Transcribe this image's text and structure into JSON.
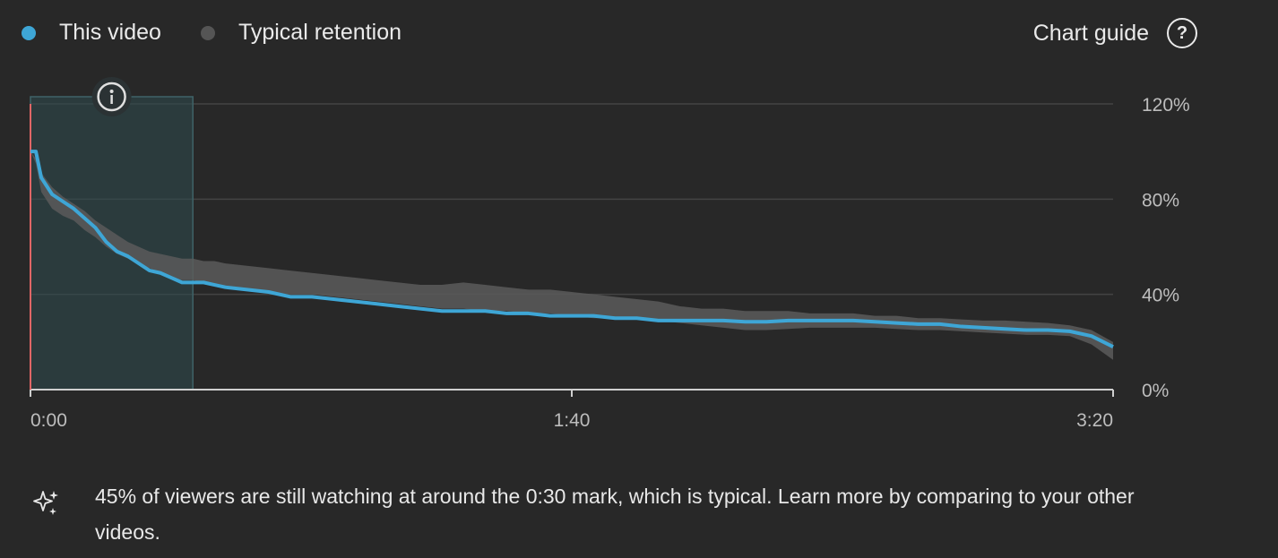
{
  "legend": {
    "items": [
      {
        "label": "This video",
        "color": "#3ea6d6"
      },
      {
        "label": "Typical retention",
        "color": "#555555"
      }
    ]
  },
  "guide": {
    "label": "Chart guide",
    "icon": "help-circle-icon"
  },
  "info_marker": {
    "icon": "info-icon"
  },
  "insight": {
    "icon": "sparkle-icon",
    "text": "45% of viewers are still watching at around the 0:30 mark, which is typical. Learn more by comparing to your other videos."
  },
  "chart_data": {
    "type": "line",
    "xlabel": "",
    "ylabel": "",
    "xlim": [
      0,
      200
    ],
    "ylim": [
      0,
      120
    ],
    "x_ticks": [
      {
        "value": 0,
        "label": "0:00"
      },
      {
        "value": 100,
        "label": "1:40"
      },
      {
        "value": 200,
        "label": "3:20"
      }
    ],
    "y_ticks": [
      {
        "value": 0,
        "label": "0%"
      },
      {
        "value": 40,
        "label": "40%"
      },
      {
        "value": 80,
        "label": "80%"
      },
      {
        "value": 120,
        "label": "120%"
      }
    ],
    "highlight_range": [
      0,
      30
    ],
    "grid": true,
    "legend_position": "top-left",
    "series": [
      {
        "name": "This video",
        "color": "#3ea6d6",
        "x": [
          0,
          1,
          2,
          4,
          6,
          8,
          10,
          12,
          14,
          16,
          18,
          20,
          22,
          24,
          26,
          28,
          30,
          32,
          34,
          36,
          40,
          44,
          48,
          52,
          56,
          60,
          64,
          68,
          72,
          76,
          80,
          84,
          88,
          92,
          96,
          100,
          104,
          108,
          112,
          116,
          120,
          124,
          128,
          132,
          136,
          140,
          144,
          148,
          152,
          156,
          160,
          164,
          168,
          172,
          176,
          180,
          184,
          188,
          192,
          196,
          200
        ],
        "values": [
          100,
          100,
          89,
          82,
          79,
          76,
          72,
          68,
          62,
          58,
          56,
          53,
          50,
          49,
          47,
          45,
          45,
          45,
          44,
          43,
          42,
          41,
          39,
          39,
          38,
          37,
          36,
          35,
          34,
          33,
          33,
          33,
          32,
          32,
          31,
          31,
          31,
          30,
          30,
          29,
          29,
          29,
          29,
          28.5,
          28.5,
          29,
          29,
          29,
          29,
          28.5,
          28,
          27.5,
          27.5,
          26.5,
          26,
          25.5,
          25,
          25,
          24.5,
          22.5,
          18
        ]
      },
      {
        "name": "Typical retention",
        "color": "#555555",
        "x": [
          0,
          1,
          2,
          4,
          6,
          8,
          10,
          12,
          14,
          16,
          18,
          20,
          22,
          24,
          26,
          28,
          30,
          32,
          34,
          36,
          40,
          44,
          48,
          52,
          56,
          60,
          64,
          68,
          72,
          76,
          80,
          84,
          88,
          92,
          96,
          100,
          104,
          108,
          112,
          116,
          120,
          124,
          128,
          132,
          136,
          140,
          144,
          148,
          152,
          156,
          160,
          164,
          168,
          172,
          176,
          180,
          184,
          188,
          192,
          196,
          200
        ],
        "upper": [
          100,
          97,
          91,
          85,
          81,
          78,
          75,
          71,
          68,
          65,
          62,
          60,
          58,
          57,
          56,
          55,
          55,
          54,
          54,
          53,
          52,
          51,
          50,
          49,
          48,
          47,
          46,
          45,
          44,
          44,
          45,
          44,
          43,
          42,
          42,
          41,
          40,
          39,
          38,
          37,
          35,
          34,
          34,
          33,
          33,
          33,
          32,
          32,
          32,
          31,
          31,
          30,
          30,
          29.5,
          29,
          29,
          28.5,
          28,
          27,
          25,
          20
        ],
        "lower": [
          100,
          95,
          83,
          76,
          73,
          71,
          67,
          64,
          60,
          57,
          55,
          53,
          51,
          49,
          47,
          46,
          46,
          45,
          44,
          43,
          42,
          41,
          40,
          40,
          39,
          38,
          37,
          36,
          35,
          34,
          34,
          33,
          33,
          32,
          32,
          31,
          30,
          30,
          30,
          29,
          28,
          27,
          26,
          25,
          25,
          25.5,
          26,
          26,
          26,
          26,
          25.5,
          25,
          25,
          24.5,
          24,
          23.5,
          23,
          23,
          22.5,
          19,
          12.5
        ]
      }
    ]
  }
}
